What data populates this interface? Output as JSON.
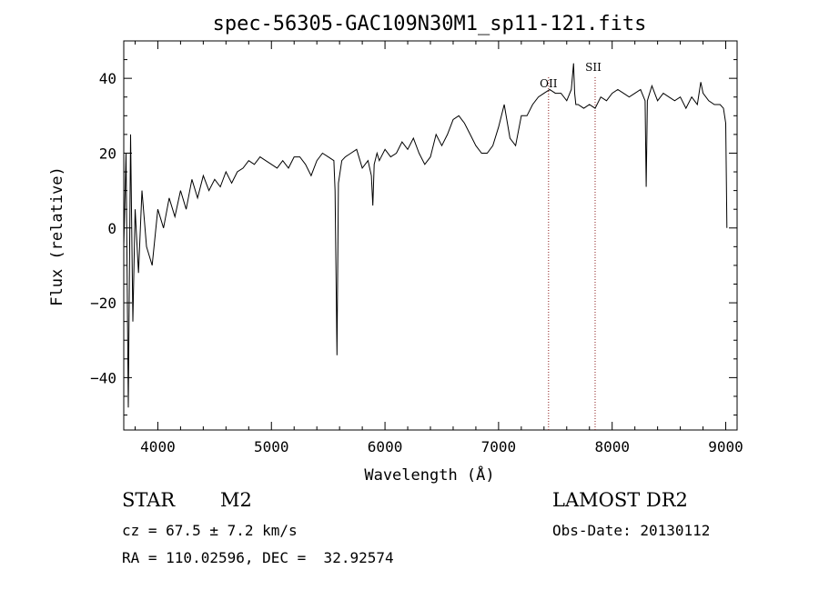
{
  "chart_data": {
    "type": "line",
    "title": "spec-56305-GAC109N30M1_sp11-121.fits",
    "xlabel": "Wavelength (Å)",
    "ylabel": "Flux (relative)",
    "xlim": [
      3700,
      9100
    ],
    "ylim": [
      -54,
      50
    ],
    "xticks": [
      4000,
      5000,
      6000,
      7000,
      8000,
      9000
    ],
    "yticks": [
      -40,
      -20,
      0,
      20,
      40
    ],
    "grid": false,
    "series": [
      {
        "x": [
          3700,
          3720,
          3740,
          3760,
          3780,
          3800,
          3830,
          3860,
          3900,
          3950,
          4000,
          4050,
          4100,
          4150,
          4200,
          4250,
          4300,
          4350,
          4400,
          4450,
          4500,
          4550,
          4600,
          4650,
          4700,
          4750,
          4800,
          4850,
          4900,
          4950,
          5000,
          5050,
          5100,
          5150,
          5200,
          5250,
          5300,
          5350,
          5400,
          5450,
          5500,
          5550,
          5560,
          5577,
          5590,
          5620,
          5650,
          5700,
          5750,
          5800,
          5850,
          5880,
          5893,
          5905,
          5930,
          5950,
          6000,
          6050,
          6100,
          6150,
          6200,
          6250,
          6300,
          6350,
          6400,
          6450,
          6500,
          6550,
          6600,
          6650,
          6700,
          6750,
          6800,
          6850,
          6900,
          6950,
          7000,
          7050,
          7100,
          7150,
          7200,
          7250,
          7300,
          7350,
          7400,
          7450,
          7500,
          7550,
          7600,
          7640,
          7660,
          7670,
          7680,
          7700,
          7750,
          7800,
          7850,
          7900,
          7950,
          8000,
          8050,
          8100,
          8150,
          8200,
          8250,
          8290,
          8300,
          8310,
          8320,
          8350,
          8400,
          8450,
          8500,
          8550,
          8600,
          8650,
          8700,
          8750,
          8780,
          8800,
          8850,
          8900,
          8950,
          8980,
          9000,
          9010
        ],
        "values": [
          -5,
          20,
          -48,
          25,
          -25,
          5,
          -12,
          10,
          -5,
          -10,
          5,
          0,
          8,
          3,
          10,
          5,
          13,
          8,
          14,
          10,
          13,
          11,
          15,
          12,
          15,
          16,
          18,
          17,
          19,
          18,
          17,
          16,
          18,
          16,
          19,
          19,
          17,
          14,
          18,
          20,
          19,
          18,
          10,
          -34,
          12,
          18,
          19,
          20,
          21,
          16,
          18,
          14,
          6,
          17,
          20,
          18,
          21,
          19,
          20,
          23,
          21,
          24,
          20,
          17,
          19,
          25,
          22,
          25,
          29,
          30,
          28,
          25,
          22,
          20,
          20,
          22,
          27,
          33,
          24,
          22,
          30,
          30,
          33,
          35,
          36,
          37,
          36,
          36,
          34,
          37,
          44,
          36,
          33,
          33,
          32,
          33,
          32,
          35,
          34,
          36,
          37,
          36,
          35,
          36,
          37,
          34,
          11,
          34,
          35,
          38,
          34,
          36,
          35,
          34,
          35,
          32,
          35,
          33,
          39,
          36,
          34,
          33,
          33,
          32,
          28,
          0
        ]
      }
    ],
    "annotations": [
      {
        "label": "OII",
        "x": 7440
      },
      {
        "label": "SII",
        "x": 7850
      }
    ]
  },
  "info": {
    "object_class": "STAR",
    "subclass": "M2",
    "survey": "LAMOST DR2",
    "cz": "cz = 67.5 ± 7.2 km/s",
    "coords": "RA = 110.02596, DEC =  32.92574",
    "obs_date": "Obs-Date: 20130112"
  }
}
